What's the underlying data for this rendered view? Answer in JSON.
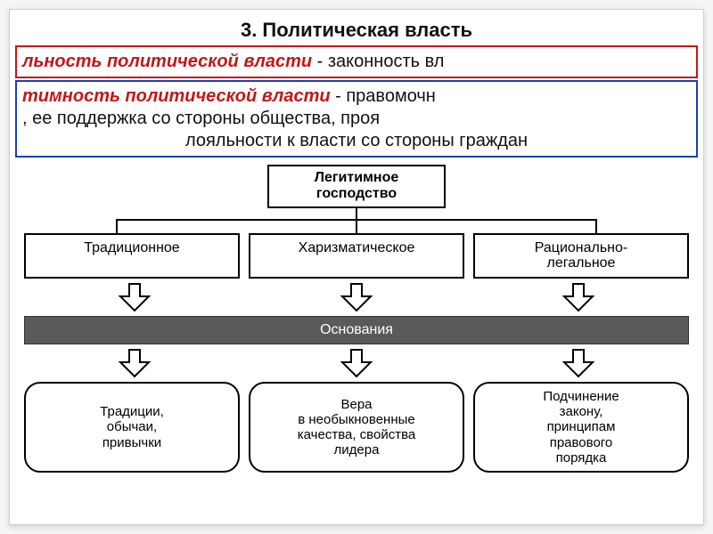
{
  "colors": {
    "def1_border": "#c01818",
    "def1_term": "#c01818",
    "def2_border": "#1a3fb0",
    "def2_term": "#c01818",
    "bar_bg": "#5a5a5a",
    "bar_text": "#ffffff",
    "node_border": "#000000",
    "page_bg": "#ffffff"
  },
  "title": "3. Политическая власть",
  "def1": {
    "term": "льность политической власти",
    "rest": " - законность вл"
  },
  "def2": {
    "line1_term": "тимность политической власти",
    "line1_rest": " - правомочн",
    "line2": ", ее поддержка со стороны общества, проя",
    "line3": "лояльности к власти со стороны граждан"
  },
  "diagram": {
    "root": "Легитимное\nгосподство",
    "types": [
      "Традиционное",
      "Харизматическое",
      "Рационально-\nлегальное"
    ],
    "bar_label": "Основания",
    "descriptions": [
      "Традиции,\nобычаи,\nпривычки",
      "Вера\nв необыкновенные\nкачества, свойства\nлидера",
      "Подчинение\nзакону,\nпринципам\nправового\nпорядка"
    ],
    "layout": {
      "root_stem_h": 12,
      "hbar_w": 540,
      "drop_h": 14,
      "arrow_w": 44,
      "arrow_h": 34
    }
  }
}
